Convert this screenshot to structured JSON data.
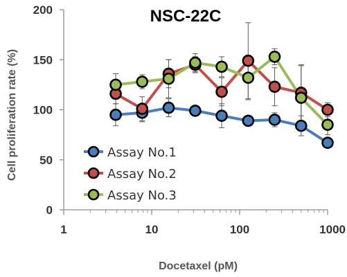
{
  "chart_data": {
    "type": "line",
    "title": "NSC-22C",
    "xlabel": "Docetaxel (pM)",
    "ylabel": "Cell proliferation rate (%)",
    "xscale": "log",
    "xlim": [
      1,
      1000
    ],
    "ylim": [
      0,
      200
    ],
    "x_ticks": [
      {
        "value": 1,
        "label": "1"
      },
      {
        "value": 10,
        "label": "10"
      },
      {
        "value": 100,
        "label": "100"
      },
      {
        "value": 1000,
        "label": "1000"
      }
    ],
    "y_ticks": [
      {
        "value": 0,
        "label": "0"
      },
      {
        "value": 50,
        "label": "50"
      },
      {
        "value": 100,
        "label": "100"
      },
      {
        "value": 150,
        "label": "150"
      },
      {
        "value": 200,
        "label": "200"
      }
    ],
    "grid": false,
    "legend_position": "bottom-left",
    "x": [
      3.9,
      7.8,
      15.6,
      31.25,
      62.5,
      125,
      250,
      500,
      1000
    ],
    "series": [
      {
        "name": "Assay No.1",
        "color": "#4a7ebb",
        "values": [
          95,
          97,
          102,
          99,
          94,
          89,
          90,
          84,
          67
        ],
        "errors": [
          11,
          9,
          9,
          5,
          12,
          5,
          7,
          10,
          5
        ]
      },
      {
        "name": "Assay No.2",
        "color": "#c0504d",
        "values": [
          116,
          101,
          136,
          145,
          118,
          149,
          123,
          117,
          100
        ],
        "errors": [
          10,
          12,
          14,
          8,
          14,
          38,
          19,
          28,
          7
        ]
      },
      {
        "name": "Assay No.3",
        "color": "#9bbb59",
        "values": [
          125,
          128,
          131,
          147,
          143,
          132,
          153,
          112,
          85
        ],
        "errors": [
          11,
          7,
          19,
          9,
          10,
          22,
          8,
          32,
          10
        ]
      }
    ]
  }
}
